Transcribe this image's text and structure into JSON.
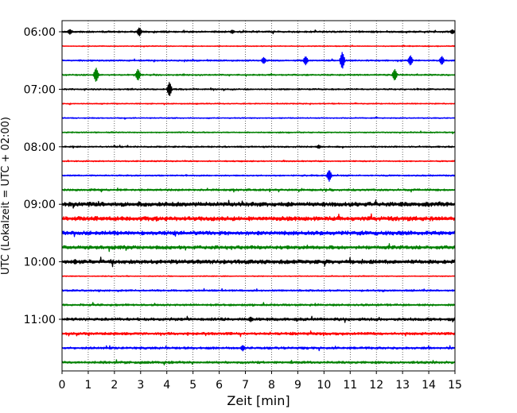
{
  "chart_data": {
    "type": "line",
    "title": "",
    "xlabel": "Zeit  [min]",
    "ylabel": "UTC (Lokalzeit = UTC + 02:00)",
    "xlim": [
      0,
      15
    ],
    "x_ticks": [
      0,
      1,
      2,
      3,
      4,
      5,
      6,
      7,
      8,
      9,
      10,
      11,
      12,
      13,
      14,
      15
    ],
    "x_tick_labels": [
      "0",
      "1",
      "2",
      "3",
      "4",
      "5",
      "6",
      "7",
      "8",
      "9",
      "10",
      "11",
      "12",
      "13",
      "14",
      "15"
    ],
    "y_tick_labels": [
      "06:00",
      "07:00",
      "08:00",
      "09:00",
      "10:00",
      "11:00"
    ],
    "grid": "vertical dotted",
    "trace_interval_minutes": 15,
    "traces": [
      {
        "start": "06:00",
        "color": "#000000",
        "events": [
          {
            "t": 0.3,
            "amp": 0.35
          },
          {
            "t": 2.95,
            "amp": 0.6
          },
          {
            "t": 6.5,
            "amp": 0.25
          },
          {
            "t": 14.9,
            "amp": 0.3
          }
        ],
        "noise": 0.12
      },
      {
        "start": "06:15",
        "color": "#ff0000",
        "events": [],
        "noise": 0.06
      },
      {
        "start": "06:30",
        "color": "#0000ff",
        "events": [
          {
            "t": 7.7,
            "amp": 0.45
          },
          {
            "t": 9.3,
            "amp": 0.6
          },
          {
            "t": 10.7,
            "amp": 1.2
          },
          {
            "t": 13.3,
            "amp": 0.7
          },
          {
            "t": 14.5,
            "amp": 0.6
          }
        ],
        "noise": 0.1
      },
      {
        "start": "06:45",
        "color": "#008000",
        "events": [
          {
            "t": 1.3,
            "amp": 1.0
          },
          {
            "t": 2.9,
            "amp": 0.8
          },
          {
            "t": 12.7,
            "amp": 0.8
          }
        ],
        "noise": 0.1
      },
      {
        "start": "07:00",
        "color": "#000000",
        "events": [
          {
            "t": 4.1,
            "amp": 1.0
          }
        ],
        "noise": 0.1
      },
      {
        "start": "07:15",
        "color": "#ff0000",
        "events": [],
        "noise": 0.07
      },
      {
        "start": "07:30",
        "color": "#0000ff",
        "events": [],
        "noise": 0.07
      },
      {
        "start": "07:45",
        "color": "#008000",
        "events": [],
        "noise": 0.08
      },
      {
        "start": "08:00",
        "color": "#000000",
        "events": [
          {
            "t": 9.8,
            "amp": 0.25
          }
        ],
        "noise": 0.1
      },
      {
        "start": "08:15",
        "color": "#ff0000",
        "events": [],
        "noise": 0.08
      },
      {
        "start": "08:30",
        "color": "#0000ff",
        "events": [
          {
            "t": 10.2,
            "amp": 0.8
          }
        ],
        "noise": 0.09
      },
      {
        "start": "08:45",
        "color": "#008000",
        "events": [],
        "noise": 0.14
      },
      {
        "start": "09:00",
        "color": "#000000",
        "events": [],
        "noise": 0.3
      },
      {
        "start": "09:15",
        "color": "#ff0000",
        "events": [],
        "noise": 0.3
      },
      {
        "start": "09:30",
        "color": "#0000ff",
        "events": [],
        "noise": 0.28
      },
      {
        "start": "09:45",
        "color": "#008000",
        "events": [],
        "noise": 0.24
      },
      {
        "start": "10:00",
        "color": "#000000",
        "events": [
          {
            "t": 0.5,
            "amp": 0.35
          }
        ],
        "noise": 0.28
      },
      {
        "start": "10:15",
        "color": "#ff0000",
        "events": [],
        "noise": 0.06
      },
      {
        "start": "10:30",
        "color": "#0000ff",
        "events": [],
        "noise": 0.12
      },
      {
        "start": "10:45",
        "color": "#008000",
        "events": [],
        "noise": 0.14
      },
      {
        "start": "11:00",
        "color": "#000000",
        "events": [
          {
            "t": 7.2,
            "amp": 0.35
          }
        ],
        "noise": 0.2
      },
      {
        "start": "11:15",
        "color": "#ff0000",
        "events": [],
        "noise": 0.18
      },
      {
        "start": "11:30",
        "color": "#0000ff",
        "events": [
          {
            "t": 6.9,
            "amp": 0.4
          }
        ],
        "noise": 0.16
      },
      {
        "start": "11:45",
        "color": "#008000",
        "events": [],
        "noise": 0.16
      }
    ]
  }
}
